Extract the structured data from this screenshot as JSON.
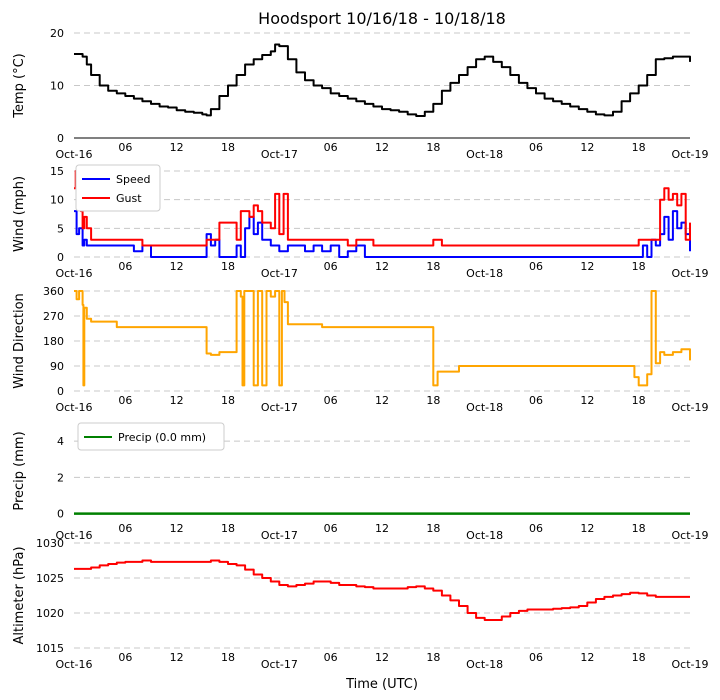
{
  "title": "Hoodsport 10/16/18 - 10/18/18",
  "xlabel": "Time (UTC)",
  "x_ticks": [
    "Oct-16",
    "06",
    "12",
    "18",
    "Oct-17",
    "06",
    "12",
    "18",
    "Oct-18",
    "06",
    "12",
    "18",
    "Oct-19"
  ],
  "x_range_hours": [
    0,
    72
  ],
  "colors": {
    "temp": "#000000",
    "speed": "#0000ff",
    "gust": "#ff0000",
    "direction": "#ffa500",
    "precip": "#008000",
    "altimeter": "#ff0000",
    "grid": "#c8c8c8"
  },
  "chart_data": [
    {
      "type": "line",
      "id": "temp",
      "ylabel": "Temp (°C)",
      "ylim": [
        0,
        20
      ],
      "yticks": [
        "0",
        "10",
        "20"
      ],
      "series": [
        {
          "name": "Temp",
          "x": [
            0,
            1,
            1.5,
            2,
            3,
            4,
            5,
            6,
            7,
            8,
            9,
            10,
            11,
            12,
            13,
            14,
            15,
            15.5,
            16,
            17,
            18,
            19,
            20,
            21,
            22,
            23,
            23.5,
            24,
            25,
            26,
            27,
            28,
            29,
            30,
            31,
            32,
            33,
            34,
            35,
            36,
            37,
            38,
            39,
            40,
            41,
            42,
            43,
            44,
            45,
            46,
            47,
            48,
            49,
            50,
            51,
            52,
            53,
            54,
            55,
            56,
            57,
            58,
            59,
            60,
            61,
            62,
            63,
            64,
            65,
            66,
            67,
            68,
            69,
            70,
            71,
            72
          ],
          "values": [
            16,
            15.5,
            14,
            12,
            10,
            9,
            8.5,
            8,
            7.5,
            7,
            6.5,
            6,
            5.8,
            5.3,
            5,
            4.8,
            4.5,
            4.3,
            5.5,
            8,
            10,
            12,
            14,
            15,
            15.8,
            16.5,
            17.8,
            17.5,
            15,
            12.5,
            11,
            10,
            9.5,
            8.5,
            8,
            7.5,
            7,
            6.5,
            6,
            5.5,
            5.3,
            5,
            4.5,
            4.2,
            5,
            6.5,
            9,
            10.5,
            12,
            13.5,
            15,
            15.5,
            14.5,
            13.5,
            12,
            10.5,
            9.5,
            8.5,
            7.5,
            7,
            6.5,
            6,
            5.5,
            5,
            4.5,
            4.3,
            5,
            7,
            8.5,
            10,
            12,
            15,
            15.2,
            15.5,
            15.5,
            14.5
          ]
        }
      ]
    },
    {
      "type": "line",
      "id": "wind",
      "ylabel": "Wind (mph)",
      "ylim": [
        0,
        15
      ],
      "yticks": [
        "0",
        "5",
        "10",
        "15"
      ],
      "legend": "top-left",
      "series": [
        {
          "name": "Speed",
          "x": [
            0,
            0.3,
            0.6,
            1,
            1.2,
            1.5,
            2,
            3,
            4,
            5,
            6,
            7,
            8,
            9,
            10,
            11,
            12,
            13,
            14,
            15,
            15.5,
            16,
            16.5,
            17,
            18,
            19,
            19.5,
            20,
            20.5,
            21,
            21.5,
            22,
            23,
            24,
            25,
            26,
            27,
            28,
            29,
            30,
            31,
            32,
            33,
            34,
            35,
            36,
            40,
            42,
            44,
            48,
            50,
            52,
            54,
            56,
            58,
            60,
            62,
            64,
            65,
            66,
            66.5,
            67,
            67.5,
            68,
            68.5,
            69,
            69.5,
            70,
            70.5,
            71,
            71.5,
            72
          ],
          "values": [
            8,
            4,
            5,
            2,
            3,
            2,
            2,
            2,
            2,
            2,
            2,
            1,
            2,
            0,
            0,
            0,
            0,
            0,
            0,
            0,
            4,
            2,
            3,
            0,
            0,
            2,
            0,
            5,
            7,
            4,
            6,
            3,
            2,
            1,
            2,
            2,
            1,
            2,
            1,
            2,
            0,
            1,
            2,
            0,
            0,
            0,
            0,
            0,
            0,
            0,
            0,
            0,
            0,
            0,
            0,
            0,
            0,
            0,
            0,
            0,
            2,
            0,
            3,
            2,
            4,
            7,
            3,
            8,
            5,
            6,
            4,
            1
          ]
        },
        {
          "name": "Gust",
          "x": [
            0,
            0.2,
            0.5,
            0.8,
            1,
            1.2,
            1.5,
            2,
            3,
            4,
            5,
            6,
            7,
            8,
            9,
            15.5,
            16,
            17,
            19,
            19.5,
            20,
            20.5,
            21,
            21.5,
            22,
            23,
            23.5,
            24,
            24.5,
            25,
            25.5,
            26,
            27,
            28,
            29,
            30,
            31,
            32,
            33,
            34,
            35,
            36,
            42,
            43,
            44,
            45,
            65.5,
            66,
            67,
            68,
            68.5,
            69,
            69.5,
            70,
            70.5,
            71,
            71.5,
            72
          ],
          "values": [
            12,
            15,
            10,
            8,
            5,
            7,
            5,
            3,
            3,
            3,
            3,
            3,
            3,
            2,
            2,
            3,
            3,
            6,
            3,
            8,
            8,
            7,
            9,
            8,
            6,
            5,
            11,
            4,
            11,
            3,
            3,
            3,
            3,
            3,
            3,
            3,
            3,
            2,
            3,
            3,
            2,
            2,
            3,
            2,
            2,
            2,
            2,
            3,
            3,
            3,
            10,
            12,
            10,
            11,
            9,
            11,
            3,
            6
          ]
        }
      ]
    },
    {
      "type": "line",
      "id": "direction",
      "ylabel": "Wind Direction",
      "ylim": [
        0,
        360
      ],
      "yticks": [
        "0",
        "90",
        "180",
        "270",
        "360"
      ],
      "series": [
        {
          "name": "Direction",
          "x": [
            0,
            0.3,
            0.6,
            1,
            1.1,
            1.2,
            1.5,
            2,
            3,
            4,
            5,
            6,
            7,
            8,
            9,
            15.5,
            16,
            17,
            19,
            19.5,
            19.7,
            19.9,
            20,
            20.5,
            21,
            21.5,
            22,
            22.5,
            23,
            23.5,
            24,
            24.3,
            24.6,
            25,
            26,
            27,
            28,
            29,
            30,
            31,
            32,
            33,
            34,
            35,
            36,
            42,
            42.5,
            44,
            45,
            65,
            65.5,
            66,
            67,
            67.5,
            68,
            68.5,
            69,
            70,
            71,
            72
          ],
          "values": [
            360,
            330,
            360,
            310,
            20,
            300,
            260,
            250,
            250,
            250,
            230,
            230,
            230,
            230,
            230,
            135,
            130,
            140,
            360,
            340,
            20,
            360,
            360,
            360,
            20,
            360,
            20,
            360,
            340,
            360,
            20,
            360,
            320,
            240,
            240,
            240,
            240,
            230,
            230,
            230,
            230,
            230,
            230,
            230,
            230,
            20,
            70,
            70,
            90,
            90,
            50,
            20,
            60,
            360,
            100,
            140,
            130,
            140,
            150,
            110
          ]
        }
      ]
    },
    {
      "type": "line",
      "id": "precip",
      "ylabel": "Precip (mm)",
      "ylim": [
        -0.3,
        5
      ],
      "yticks": [
        "0",
        "2",
        "4"
      ],
      "legend": "top-left",
      "series": [
        {
          "name": "Precip (0.0 mm)",
          "x": [
            0,
            72
          ],
          "values": [
            0,
            0
          ]
        }
      ]
    },
    {
      "type": "line",
      "id": "altimeter",
      "ylabel": "Altimeter (hPa)",
      "ylim": [
        1015,
        1030
      ],
      "yticks": [
        "1015",
        "1020",
        "1025",
        "1030"
      ],
      "series": [
        {
          "name": "Altimeter",
          "x": [
            0,
            1,
            2,
            3,
            4,
            5,
            6,
            7,
            8,
            9,
            10,
            11,
            12,
            13,
            14,
            15,
            16,
            17,
            18,
            19,
            20,
            21,
            22,
            23,
            24,
            25,
            26,
            27,
            28,
            29,
            30,
            31,
            32,
            33,
            34,
            35,
            36,
            37,
            38,
            39,
            40,
            41,
            42,
            43,
            44,
            45,
            46,
            47,
            48,
            49,
            50,
            51,
            52,
            53,
            54,
            55,
            56,
            57,
            58,
            59,
            60,
            61,
            62,
            63,
            64,
            65,
            66,
            67,
            68,
            69,
            70,
            71,
            72
          ],
          "values": [
            1026.3,
            1026.3,
            1026.5,
            1026.8,
            1027,
            1027.2,
            1027.3,
            1027.3,
            1027.5,
            1027.3,
            1027.3,
            1027.3,
            1027.3,
            1027.3,
            1027.3,
            1027.3,
            1027.5,
            1027.3,
            1027,
            1026.8,
            1026.2,
            1025.5,
            1025,
            1024.5,
            1024,
            1023.8,
            1024,
            1024.2,
            1024.5,
            1024.5,
            1024.3,
            1024,
            1024,
            1023.8,
            1023.7,
            1023.5,
            1023.5,
            1023.5,
            1023.5,
            1023.7,
            1023.8,
            1023.5,
            1023.2,
            1022.5,
            1021.8,
            1021,
            1020,
            1019.3,
            1019,
            1019,
            1019.5,
            1020,
            1020.3,
            1020.5,
            1020.5,
            1020.5,
            1020.6,
            1020.7,
            1020.8,
            1021,
            1021.5,
            1022,
            1022.3,
            1022.5,
            1022.7,
            1022.9,
            1022.8,
            1022.5,
            1022.3,
            1022.3,
            1022.3,
            1022.3,
            1022.3
          ]
        }
      ]
    }
  ]
}
